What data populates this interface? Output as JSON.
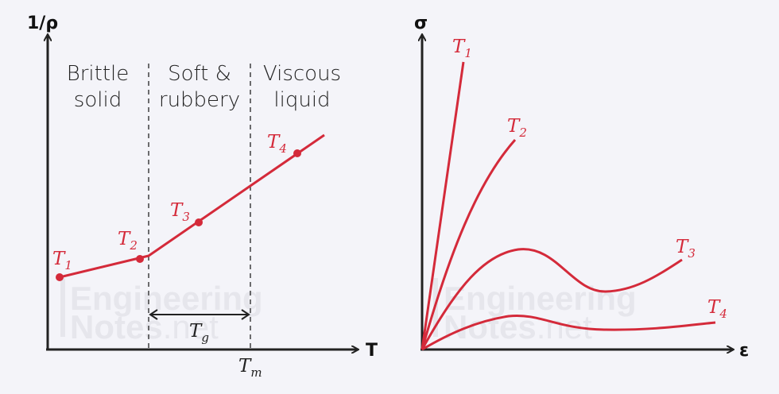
{
  "colors": {
    "curve": "#d42a3a",
    "axis": "#222222",
    "background": "#f4f4f9",
    "watermark": "#e6e6ec"
  },
  "watermark": {
    "line1": "Engineering",
    "line2": "Notes",
    "suffix": ".net"
  },
  "left_diagram": {
    "y_axis_label": "1/ρ",
    "x_axis_label": "T",
    "regions": [
      {
        "line1": "Brittle",
        "line2": "solid"
      },
      {
        "line1": "Soft &",
        "line2": "rubbery"
      },
      {
        "line1": "Viscous",
        "line2": "liquid"
      }
    ],
    "points": [
      {
        "base": "T",
        "sub": "1"
      },
      {
        "base": "T",
        "sub": "2"
      },
      {
        "base": "T",
        "sub": "3"
      },
      {
        "base": "T",
        "sub": "4"
      }
    ],
    "tg_label": {
      "base": "T",
      "sub": "g"
    },
    "tm_label": {
      "base": "T",
      "sub": "m"
    }
  },
  "right_diagram": {
    "y_axis_label": "σ",
    "x_axis_label": "ε",
    "curves": [
      {
        "base": "T",
        "sub": "1"
      },
      {
        "base": "T",
        "sub": "2"
      },
      {
        "base": "T",
        "sub": "3"
      },
      {
        "base": "T",
        "sub": "4"
      }
    ]
  }
}
